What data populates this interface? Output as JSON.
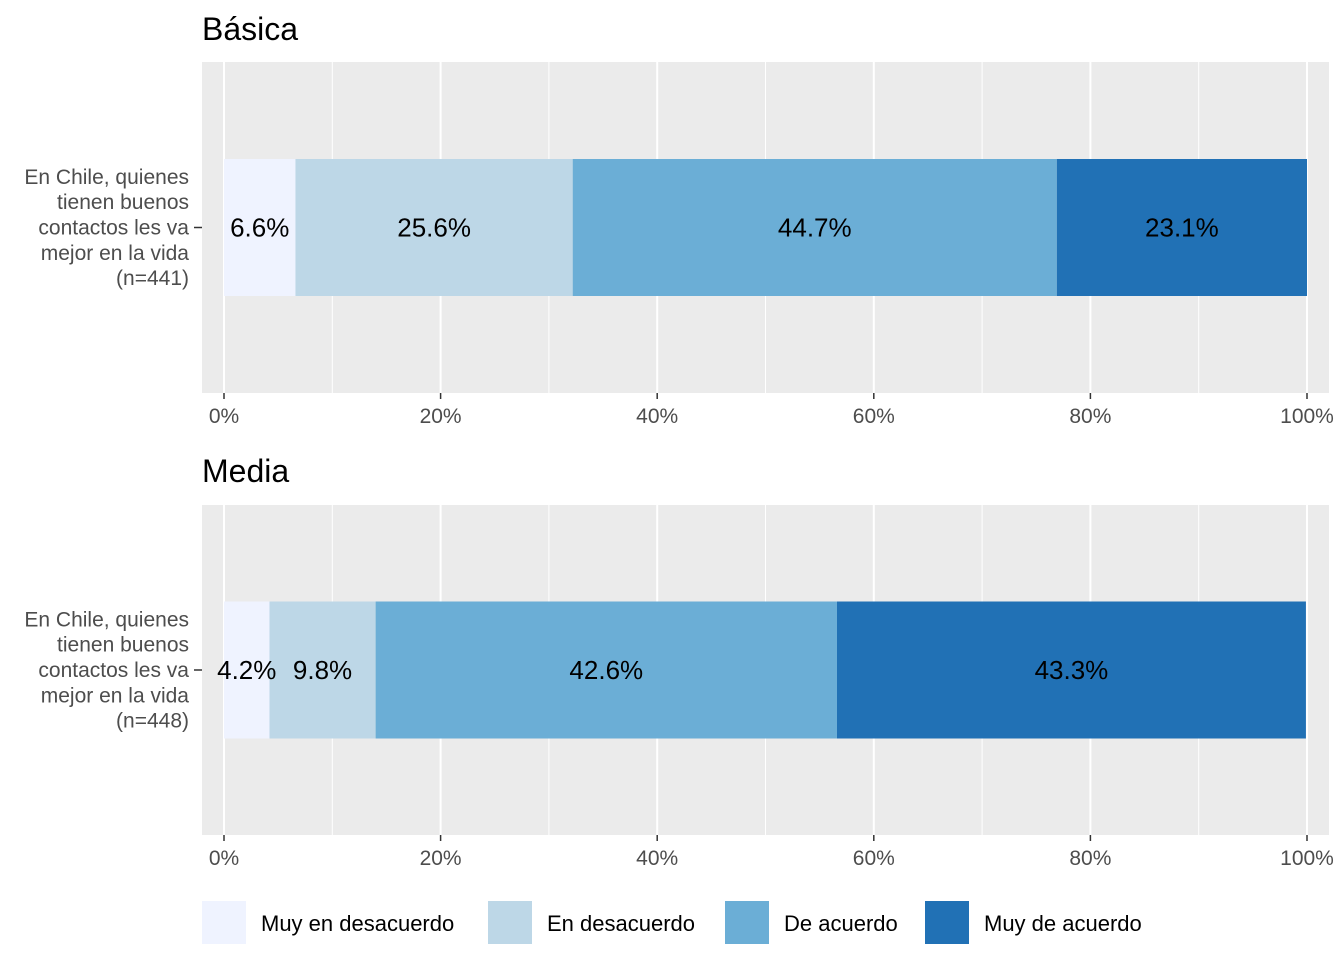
{
  "chart_data": [
    {
      "type": "bar",
      "orientation": "horizontal",
      "stacked": true,
      "title": "Básica",
      "categories": [
        [
          "En Chile, quienes",
          "tienen buenos",
          "contactos les va",
          "mejor en la vida",
          "(n=441)"
        ]
      ],
      "series": [
        {
          "name": "Muy en desacuerdo",
          "values": [
            6.6
          ],
          "label": "6.6%"
        },
        {
          "name": "En desacuerdo",
          "values": [
            25.6
          ],
          "label": "25.6%"
        },
        {
          "name": "De acuerdo",
          "values": [
            44.7
          ],
          "label": "44.7%"
        },
        {
          "name": "Muy de acuerdo",
          "values": [
            23.1
          ],
          "label": "23.1%"
        }
      ],
      "xlim": [
        0,
        100
      ],
      "xticks": [
        "0%",
        "20%",
        "40%",
        "60%",
        "80%",
        "100%"
      ],
      "grid": true
    },
    {
      "type": "bar",
      "orientation": "horizontal",
      "stacked": true,
      "title": "Media",
      "categories": [
        [
          "En Chile, quienes",
          "tienen buenos",
          "contactos les va",
          "mejor en la vida",
          "(n=448)"
        ]
      ],
      "series": [
        {
          "name": "Muy en desacuerdo",
          "values": [
            4.2
          ],
          "label": "4.2%"
        },
        {
          "name": "En desacuerdo",
          "values": [
            9.8
          ],
          "label": "9.8%"
        },
        {
          "name": "De acuerdo",
          "values": [
            42.6
          ],
          "label": "42.6%"
        },
        {
          "name": "Muy de acuerdo",
          "values": [
            43.3
          ],
          "label": "43.3%"
        }
      ],
      "xlim": [
        0,
        100
      ],
      "xticks": [
        "0%",
        "20%",
        "40%",
        "60%",
        "80%",
        "100%"
      ],
      "grid": true
    }
  ],
  "legend": {
    "position": "bottom",
    "items": [
      {
        "name": "Muy en desacuerdo",
        "color": "#eff3ff"
      },
      {
        "name": "En desacuerdo",
        "color": "#bdd7e7"
      },
      {
        "name": "De acuerdo",
        "color": "#6baed6"
      },
      {
        "name": "Muy de acuerdo",
        "color": "#2171b5"
      }
    ]
  },
  "colors": {
    "panel_background": "#ebebeb",
    "grid": "#ffffff"
  }
}
